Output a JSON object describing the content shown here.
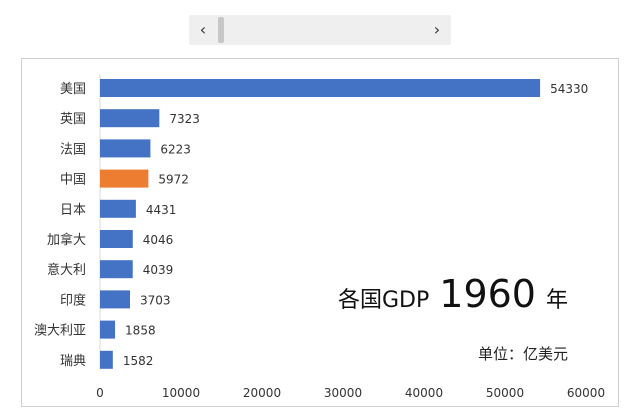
{
  "scrollbar": {
    "left_arrow": "‹",
    "right_arrow": "›",
    "position": 0.0
  },
  "overlay": {
    "title_text": "各国GDP",
    "year": "1960",
    "year_unit": "年",
    "unit_note": "单位：亿美元"
  },
  "colors": {
    "bar_default": "#4472c4",
    "bar_highlight": "#ed7d31"
  },
  "chart_data": {
    "type": "bar",
    "orientation": "horizontal",
    "categories": [
      "美国",
      "英国",
      "法国",
      "中国",
      "日本",
      "加拿大",
      "意大利",
      "印度",
      "澳大利亚",
      "瑞典"
    ],
    "values": [
      54330,
      7323,
      6223,
      5972,
      4431,
      4046,
      4039,
      3703,
      1858,
      1582
    ],
    "highlight": "中国",
    "xlim": [
      0,
      60000
    ],
    "xticks": [
      0,
      10000,
      20000,
      30000,
      40000,
      50000,
      60000
    ],
    "grid": false,
    "data_labels": true
  }
}
